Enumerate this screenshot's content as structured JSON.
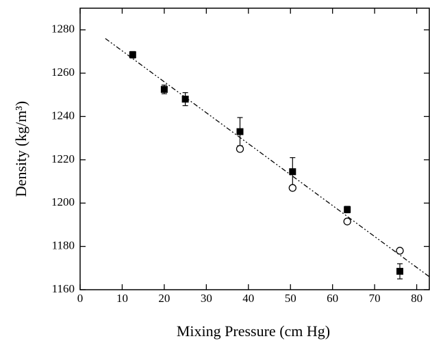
{
  "chart_data": {
    "type": "scatter",
    "x_label": "Mixing Pressure (cm Hg)",
    "y_label": "Density (kg/m³)",
    "xlim": [
      0,
      83
    ],
    "ylim": [
      1160,
      1290
    ],
    "xticks": [
      0,
      10,
      20,
      30,
      40,
      50,
      60,
      70,
      80
    ],
    "yticks": [
      1160,
      1180,
      1200,
      1220,
      1240,
      1260,
      1280
    ],
    "series": [
      {
        "marker": "filled-square",
        "color": "#000000",
        "x": [
          12.5,
          20,
          25,
          38,
          50.5,
          63.5,
          76
        ],
        "values": [
          1268.5,
          1252.5,
          1248,
          1233,
          1214.5,
          1197,
          1168.5
        ],
        "errors": [
          1.5,
          2,
          3,
          6.5,
          6.5,
          1.5,
          3.5
        ]
      },
      {
        "marker": "open-circle",
        "color": "#000000",
        "x": [
          38,
          50.5,
          63.5,
          76
        ],
        "values": [
          1225,
          1207,
          1191.5,
          1178
        ]
      },
      {
        "marker": "dash-dot-line",
        "color": "#000000",
        "x": [
          6,
          83
        ],
        "values": [
          1276,
          1166
        ]
      }
    ]
  }
}
